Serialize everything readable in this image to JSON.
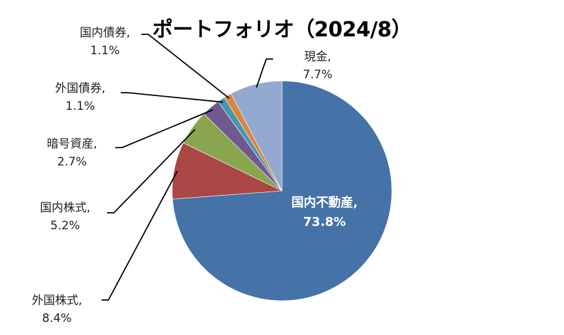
{
  "chart_data": {
    "type": "pie",
    "title": "ポートフォリオ（2024/8）",
    "categories": [
      "国内不動産",
      "外国株式",
      "国内株式",
      "暗号資産",
      "外国債券",
      "国内債券",
      "現金"
    ],
    "values": [
      73.8,
      8.4,
      5.2,
      2.7,
      1.1,
      1.1,
      7.7
    ],
    "value_labels": [
      "73.8%",
      "8.4%",
      "5.2%",
      "2.7%",
      "1.1%",
      "1.1%",
      "7.7%"
    ],
    "colors": [
      "#4572A7",
      "#AA4643",
      "#89A54E",
      "#71588F",
      "#4198AF",
      "#DB843D",
      "#93A9CF"
    ],
    "label_separator": ",",
    "start_angle": "12 o'clock",
    "direction": "clockwise",
    "legend": "none"
  }
}
